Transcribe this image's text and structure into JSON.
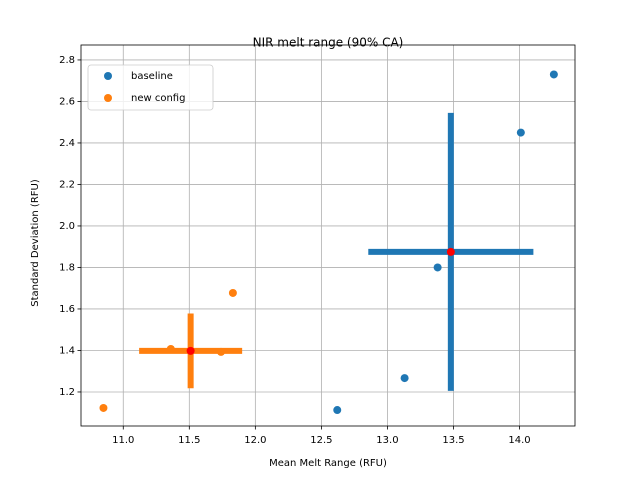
{
  "chart_data": {
    "type": "scatter",
    "title": "NIR melt range (90% CA)",
    "x_label": "Mean Melt Range (RFU)",
    "y_label": "Standard Deviation (RFU)",
    "series": [
      {
        "name": "baseline",
        "color": "#1f77b4",
        "x": [
          14.26,
          14.01,
          13.38,
          13.13,
          12.62
        ],
        "values": [
          2.73,
          2.45,
          1.8,
          1.267,
          1.113
        ],
        "mean_x": 13.48,
        "mean_y": 1.875,
        "xerr": 0.625,
        "yerr": 0.67,
        "mean_color": "#ff0000"
      },
      {
        "name": "new config",
        "color": "#ff7f0e",
        "x": [
          10.85,
          11.36,
          11.74,
          11.83
        ],
        "values": [
          1.123,
          1.407,
          1.393,
          1.677
        ],
        "mean_x": 11.51,
        "mean_y": 1.398,
        "xerr": 0.39,
        "yerr": 0.18,
        "mean_color": "#ff0000"
      }
    ],
    "xlim": [
      10.68,
      14.42
    ],
    "ylim": [
      1.036,
      2.872
    ],
    "xticks": [
      {
        "value": 11,
        "label": "11.0"
      },
      11.5,
      {
        "value": 12,
        "label": "12.0"
      },
      12.5,
      {
        "value": 13,
        "label": "13.0"
      },
      13.5,
      {
        "value": 14,
        "label": "14.0"
      }
    ],
    "yticks": [
      1.2,
      1.4,
      1.6,
      1.8,
      {
        "value": 2,
        "label": "2.0"
      },
      2.2,
      2.4,
      2.6,
      2.8
    ],
    "grid": true,
    "legend": "upper-left"
  }
}
